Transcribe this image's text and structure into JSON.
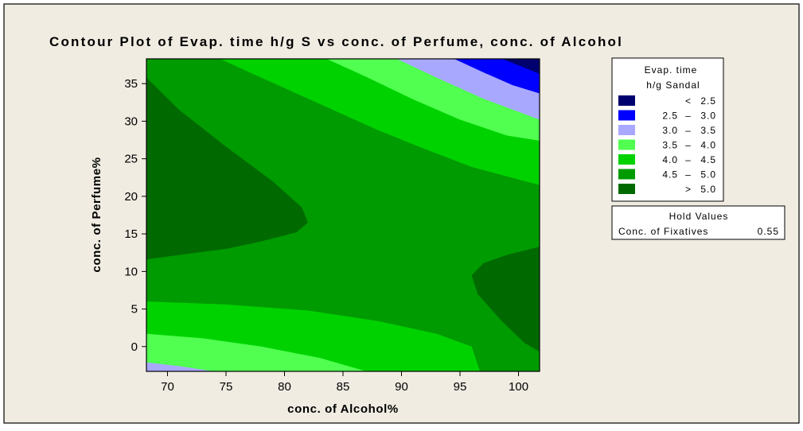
{
  "chart_data": {
    "type": "contour",
    "title": "Contour Plot of Evap. time h/g S vs conc. of Perfume, conc. of Alcohol",
    "xlabel": "conc. of Alcohol%",
    "ylabel": "conc. of Perfume%",
    "xlim": [
      68.2,
      101.8
    ],
    "ylim": [
      -3.3,
      38.3
    ],
    "x_ticks": [
      70,
      75,
      80,
      85,
      90,
      95,
      100
    ],
    "y_ticks": [
      0,
      5,
      10,
      15,
      20,
      25,
      30,
      35
    ],
    "response": "Evap. time h/g Sandal",
    "colors": {
      "background": "#f0ece2",
      "lt25": "#00006e",
      "b25_30": "#0000ff",
      "b30_35": "#a8a8ff",
      "b35_40": "#50ff50",
      "b40_45": "#00d200",
      "b45_50": "#009b00",
      "gt50": "#006a00"
    },
    "levels": [
      {
        "key": "lt25",
        "lo": "",
        "op": "<",
        "hi": "2.5"
      },
      {
        "key": "b25_30",
        "lo": "2.5",
        "op": "–",
        "hi": "3.0"
      },
      {
        "key": "b30_35",
        "lo": "3.0",
        "op": "–",
        "hi": "3.5"
      },
      {
        "key": "b35_40",
        "lo": "3.5",
        "op": "–",
        "hi": "4.0"
      },
      {
        "key": "b40_45",
        "lo": "4.0",
        "op": "–",
        "hi": "4.5"
      },
      {
        "key": "b45_50",
        "lo": "4.5",
        "op": "–",
        "hi": "5.0"
      },
      {
        "key": "gt50",
        "lo": "",
        "op": ">",
        "hi": "5.0"
      }
    ],
    "regions": [
      {
        "level": "b45_50",
        "points": [
          [
            68.2,
            -3.3
          ],
          [
            101.8,
            -3.3
          ],
          [
            101.8,
            38.3
          ],
          [
            68.2,
            38.3
          ]
        ]
      },
      {
        "level": "b40_45",
        "points": [
          [
            68.2,
            6.0
          ],
          [
            75,
            5.6
          ],
          [
            82,
            4.8
          ],
          [
            88,
            3.4
          ],
          [
            93,
            1.7
          ],
          [
            96,
            0
          ],
          [
            96.7,
            -3.3
          ],
          [
            68.2,
            -3.3
          ]
        ]
      },
      {
        "level": "b35_40",
        "points": [
          [
            68.2,
            1.7
          ],
          [
            73,
            1.1
          ],
          [
            78,
            0
          ],
          [
            83,
            -1.5
          ],
          [
            87,
            -3.3
          ],
          [
            68.2,
            -3.3
          ]
        ]
      },
      {
        "level": "b30_35",
        "points": [
          [
            68.2,
            -2.1
          ],
          [
            71,
            -2.6
          ],
          [
            74,
            -3.3
          ],
          [
            68.2,
            -3.3
          ]
        ]
      },
      {
        "level": "b40_45",
        "points": [
          [
            74.5,
            38.3
          ],
          [
            77,
            36.5
          ],
          [
            80,
            34.4
          ],
          [
            84,
            31.6
          ],
          [
            88,
            28.8
          ],
          [
            92,
            26.3
          ],
          [
            96,
            23.9
          ],
          [
            101.8,
            21.5
          ],
          [
            101.8,
            38.3
          ]
        ]
      },
      {
        "level": "b35_40",
        "points": [
          [
            83.6,
            38.3
          ],
          [
            87,
            35.9
          ],
          [
            91,
            32.9
          ],
          [
            95,
            30.2
          ],
          [
            99,
            28.1
          ],
          [
            101.8,
            27.4
          ],
          [
            101.8,
            38.3
          ]
        ]
      },
      {
        "level": "b30_35",
        "points": [
          [
            89.6,
            38.3
          ],
          [
            93,
            35.8
          ],
          [
            97,
            33
          ],
          [
            101.8,
            30.2
          ],
          [
            101.8,
            38.3
          ]
        ]
      },
      {
        "level": "b25_30",
        "points": [
          [
            94.5,
            38.3
          ],
          [
            97,
            36.5
          ],
          [
            99.5,
            34.8
          ],
          [
            101.8,
            33.7
          ],
          [
            101.8,
            38.3
          ]
        ]
      },
      {
        "level": "lt25",
        "points": [
          [
            98.6,
            38.3
          ],
          [
            100.4,
            37.2
          ],
          [
            101.8,
            36.3
          ],
          [
            101.8,
            38.3
          ]
        ]
      },
      {
        "level": "gt50",
        "points": [
          [
            68.2,
            35.8
          ],
          [
            71,
            31.5
          ],
          [
            75,
            26.6
          ],
          [
            79,
            22
          ],
          [
            81.5,
            18.5
          ],
          [
            82,
            16.5
          ],
          [
            81,
            15.2
          ],
          [
            78,
            14
          ],
          [
            75,
            13
          ],
          [
            71,
            12.2
          ],
          [
            68.2,
            11.6
          ]
        ]
      },
      {
        "level": "gt50",
        "points": [
          [
            101.8,
            13.3
          ],
          [
            99,
            12.2
          ],
          [
            97,
            11.1
          ],
          [
            96,
            9.5
          ],
          [
            96.5,
            7
          ],
          [
            98.5,
            3.5
          ],
          [
            100.5,
            0.5
          ],
          [
            101.8,
            -0.7
          ]
        ]
      }
    ]
  },
  "legend": {
    "title_line1": "Evap. time",
    "title_line2": "h/g Sandal"
  },
  "hold": {
    "title": "Hold Values",
    "label": "Conc. of Fixatives",
    "value": "0.55"
  }
}
